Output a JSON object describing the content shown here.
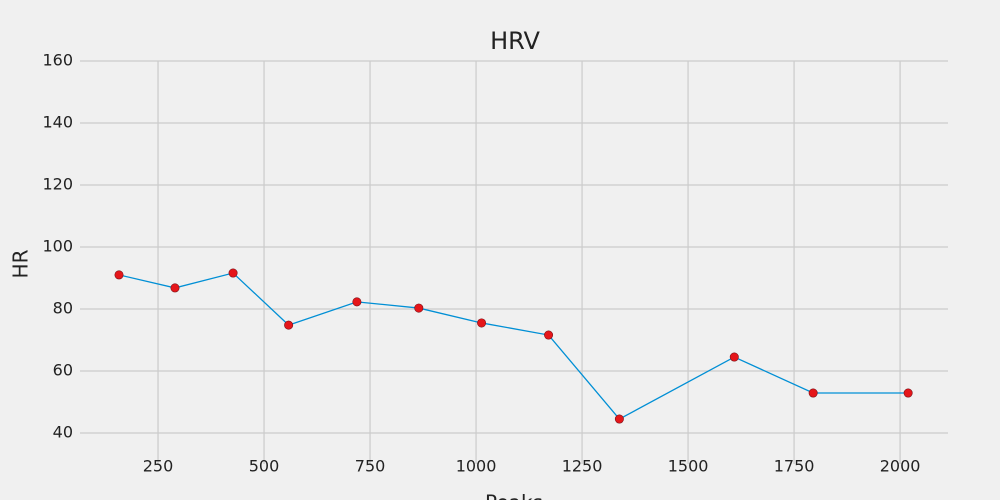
{
  "chart_data": {
    "type": "line",
    "title": "HRV",
    "x_label": "Peaks",
    "y_label": "HR",
    "x": [
      158,
      290,
      427,
      558,
      719,
      865,
      1013,
      1171,
      1338,
      1609,
      1795,
      2019
    ],
    "values": [
      91.0,
      86.8,
      91.6,
      74.8,
      82.3,
      80.3,
      75.5,
      71.6,
      44.5,
      64.5,
      52.9,
      52.9
    ],
    "color": "#008fd5",
    "marker_color": "#e5161a",
    "xlim": [
      66,
      2113
    ],
    "ylim": [
      30,
      160
    ],
    "xticks": [
      250,
      500,
      750,
      1000,
      1250,
      1500,
      1750,
      2000
    ],
    "yticks": [
      40,
      60,
      80,
      100,
      120,
      140,
      160
    ],
    "grid": true
  }
}
